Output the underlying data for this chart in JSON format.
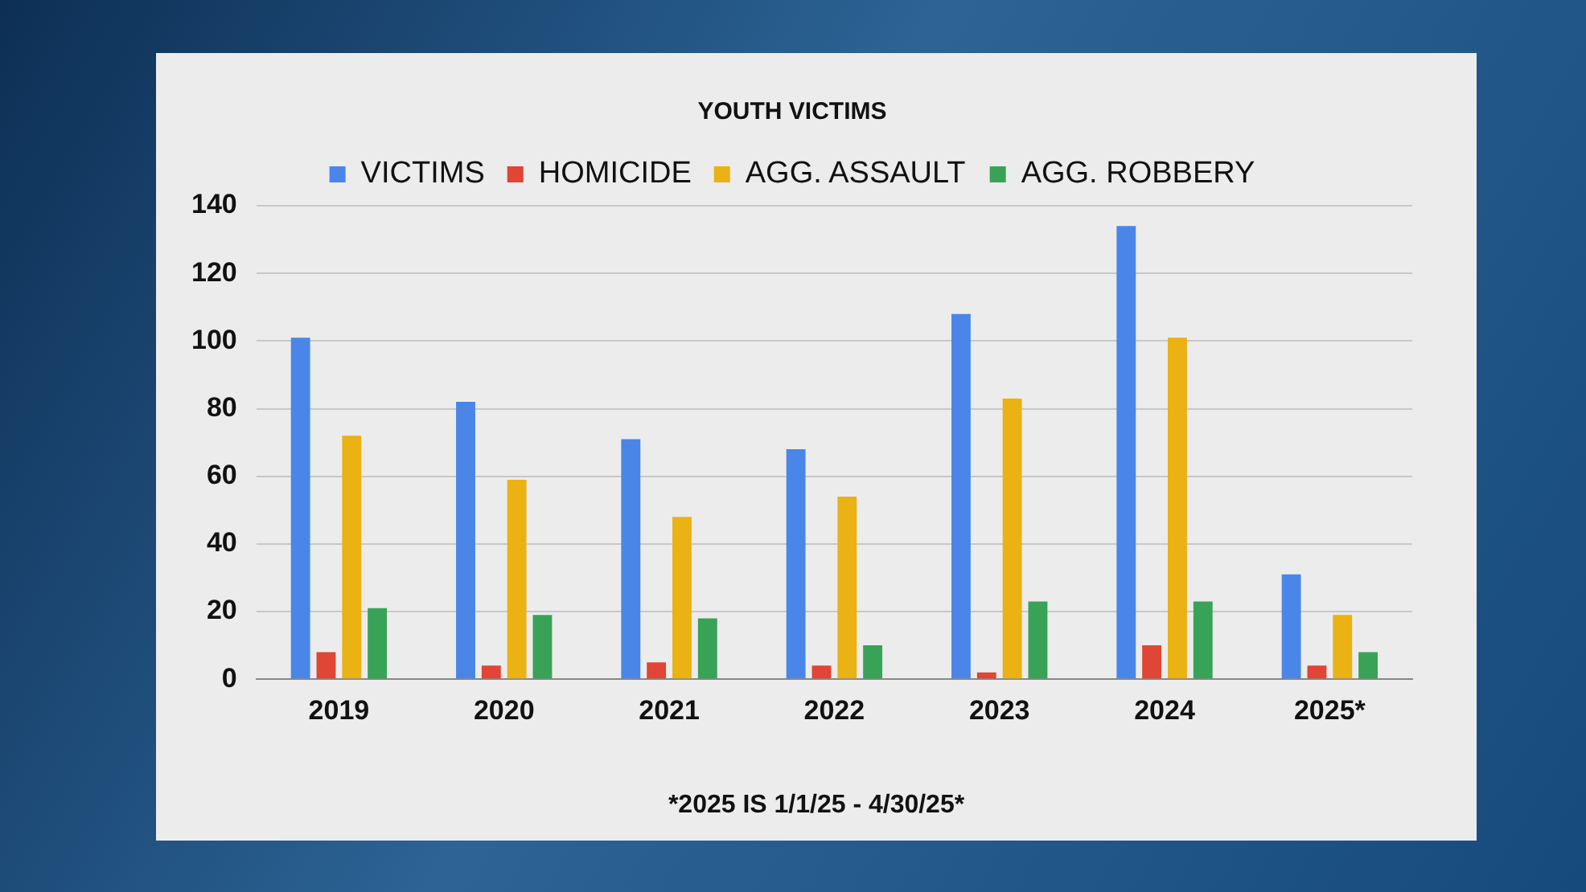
{
  "chart_data": {
    "type": "bar",
    "title": "YOUTH VICTIMS",
    "categories": [
      "2019",
      "2020",
      "2021",
      "2022",
      "2023",
      "2024",
      "2025*"
    ],
    "series": [
      {
        "name": "VICTIMS",
        "color": "#4a86e8",
        "values": [
          101,
          82,
          71,
          68,
          108,
          134,
          31
        ]
      },
      {
        "name": "HOMICIDE",
        "color": "#e04535",
        "values": [
          8,
          4,
          5,
          4,
          2,
          10,
          4
        ]
      },
      {
        "name": "AGG. ASSAULT",
        "color": "#eab212",
        "values": [
          72,
          59,
          48,
          54,
          83,
          101,
          19
        ]
      },
      {
        "name": "AGG. ROBBERY",
        "color": "#38a356",
        "values": [
          21,
          19,
          18,
          10,
          23,
          23,
          8
        ]
      }
    ],
    "ylim": [
      0,
      140
    ],
    "yticks": [
      0,
      20,
      40,
      60,
      80,
      100,
      120,
      140
    ],
    "grid": "y",
    "legend": "top",
    "annotations": [
      "*2025 IS 1/1/25 - 4/30/25*"
    ]
  }
}
